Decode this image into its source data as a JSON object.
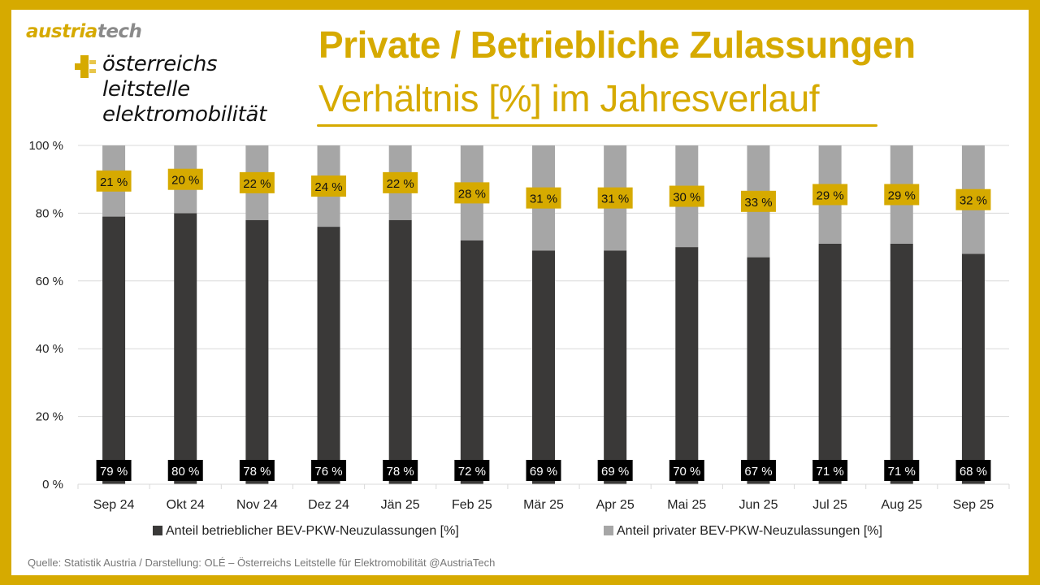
{
  "logo": {
    "austria": "austria",
    "tech": "tech",
    "ole_lines": [
      "österreichs",
      "leitstelle",
      "elektromobilität"
    ]
  },
  "header": {
    "title": "Private / Betriebliche Zulassungen",
    "subtitle": "Verhältnis [%] im Jahresverlauf"
  },
  "colors": {
    "accent": "#D6AA00",
    "business": "#3A3938",
    "private": "#A6A6A6",
    "label_dark_bg": "#000000",
    "gridline": "#D9D9D9"
  },
  "chart_data": {
    "type": "bar",
    "stacked": true,
    "title": "Private / Betriebliche Zulassungen – Verhältnis [%] im Jahresverlauf",
    "xlabel": "",
    "ylabel": "",
    "ylim": [
      0,
      100
    ],
    "yticks": [
      0,
      20,
      40,
      60,
      80,
      100
    ],
    "ytick_labels": [
      "0 %",
      "20 %",
      "40 %",
      "60 %",
      "80 %",
      "100 %"
    ],
    "grid": true,
    "legend_position": "bottom",
    "categories": [
      "Sep 24",
      "Okt 24",
      "Nov 24",
      "Dez 24",
      "Jän 25",
      "Feb 25",
      "Mär 25",
      "Apr 25",
      "Mai 25",
      "Jun 25",
      "Jul 25",
      "Aug 25",
      "Sep 25"
    ],
    "series": [
      {
        "name": "Anteil betrieblicher BEV-PKW-Neuzulassungen [%]",
        "values": [
          79,
          80,
          78,
          76,
          78,
          72,
          69,
          69,
          70,
          67,
          71,
          71,
          68
        ],
        "labels": [
          "79 %",
          "80 %",
          "78 %",
          "76 %",
          "78 %",
          "72 %",
          "69 %",
          "69 %",
          "70 %",
          "67 %",
          "71 %",
          "71 %",
          "68 %"
        ]
      },
      {
        "name": "Anteil privater BEV-PKW-Neuzulassungen [%]",
        "values": [
          21,
          20,
          22,
          24,
          22,
          28,
          31,
          31,
          30,
          33,
          29,
          29,
          32
        ],
        "labels": [
          "21 %",
          "20 %",
          "22 %",
          "24 %",
          "22 %",
          "28 %",
          "31 %",
          "31 %",
          "30 %",
          "33 %",
          "29 %",
          "29 %",
          "32 %"
        ]
      }
    ]
  },
  "legend": {
    "business": "Anteil betrieblicher BEV-PKW-Neuzulassungen [%]",
    "private": "Anteil privater BEV-PKW-Neuzulassungen [%]"
  },
  "source": "Quelle: Statistik Austria / Darstellung: OLÉ – Österreichs Leitstelle für Elektromobilität @AustriaTech"
}
